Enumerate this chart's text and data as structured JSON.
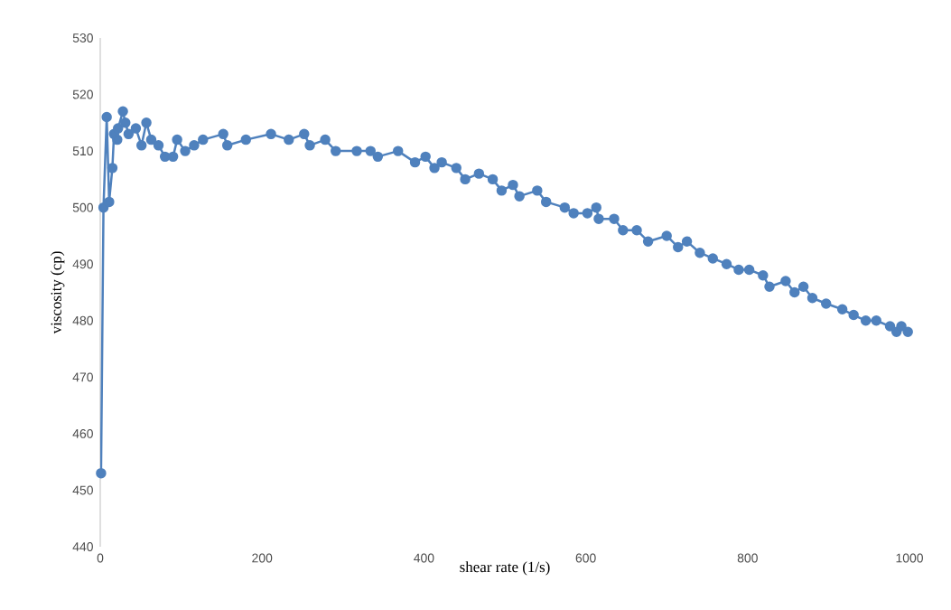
{
  "chart_data": {
    "type": "line",
    "xlabel": "shear rate (1/s)",
    "ylabel": "viscosity (cp)",
    "xlim": [
      0,
      1000
    ],
    "xticks": [
      0,
      200,
      400,
      600,
      800,
      1000
    ],
    "ylim": [
      440,
      530
    ],
    "yticks": [
      440,
      450,
      460,
      470,
      480,
      490,
      500,
      510,
      520,
      530
    ],
    "marker": "circle",
    "line_style": "solid",
    "series": [
      {
        "color": "#4f81bd",
        "x": [
          1,
          4,
          8,
          11,
          15,
          17,
          21,
          22,
          28,
          31,
          35,
          44,
          51,
          57,
          63,
          72,
          80,
          90,
          95,
          105,
          116,
          127,
          152,
          157,
          180,
          211,
          233,
          252,
          259,
          278,
          291,
          317,
          334,
          343,
          368,
          389,
          402,
          413,
          422,
          440,
          451,
          468,
          485,
          496,
          510,
          518,
          540,
          551,
          574,
          585,
          602,
          613,
          616,
          635,
          646,
          663,
          677,
          700,
          714,
          725,
          741,
          757,
          774,
          789,
          802,
          819,
          827,
          847,
          858,
          869,
          880,
          897,
          917,
          931,
          946,
          959,
          976,
          984,
          990,
          998
        ],
        "values": [
          453,
          500,
          516,
          501,
          507,
          513,
          512,
          514,
          517,
          515,
          513,
          514,
          511,
          515,
          512,
          511,
          509,
          509,
          512,
          510,
          511,
          512,
          513,
          511,
          512,
          513,
          512,
          513,
          511,
          512,
          510,
          510,
          510,
          509,
          510,
          508,
          509,
          507,
          508,
          507,
          505,
          506,
          505,
          503,
          504,
          502,
          503,
          501,
          500,
          499,
          499,
          500,
          498,
          498,
          496,
          496,
          494,
          495,
          493,
          494,
          492,
          491,
          490,
          489,
          489,
          488,
          486,
          487,
          485,
          486,
          484,
          483,
          482,
          481,
          480,
          480,
          479,
          478,
          479,
          478
        ]
      }
    ]
  }
}
